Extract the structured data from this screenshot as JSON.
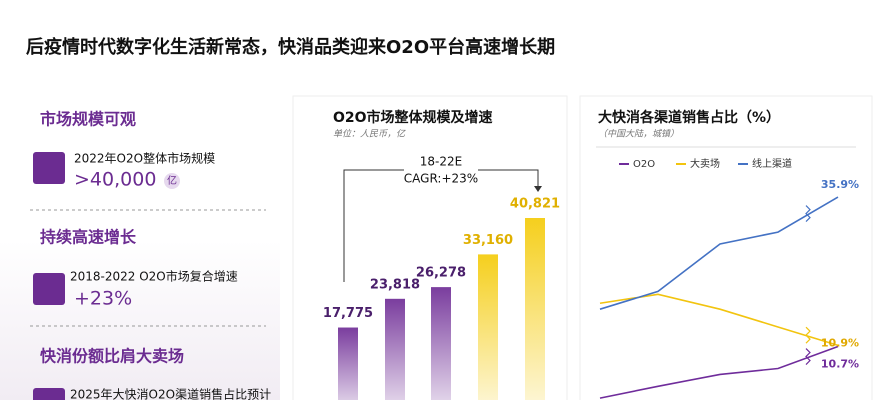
{
  "title": "后疫情时代数字化生活新常态，快消品类迎来O2O平台高速增长期",
  "highlights": [
    {
      "heading": "市场规模可观",
      "label": "2022年O2O整体市场规模",
      "value": ">40,000",
      "unit": "亿"
    },
    {
      "heading": "持续高速增长",
      "label": "2018-2022 O2O市场复合增速",
      "value": "+23%"
    },
    {
      "heading": "快消份额比肩大卖场",
      "label": "2025年大快消O2O渠道销售占比预计"
    }
  ],
  "chart_data": [
    {
      "type": "bar",
      "title": "O2O市场整体规模及增速",
      "subtitle": "单位：人民币，亿",
      "annotation": [
        "18-22E",
        "CAGR:+23%"
      ],
      "categories": [
        null,
        null,
        null,
        null,
        null
      ],
      "values": [
        17775,
        23818,
        26278,
        33160,
        40821
      ],
      "value_labels": [
        "17,775",
        "23,818",
        "26,278",
        "33,160",
        "40,821"
      ],
      "colors": [
        "#7a3d9e",
        "#7a3d9e",
        "#7a3d9e",
        "#f5cf1d",
        "#f5cf1d"
      ]
    },
    {
      "type": "line",
      "title": "大快消各渠道销售占比（%）",
      "subtitle": "（中国大陆，城镇）",
      "categories": [
        null,
        null,
        null,
        null,
        null
      ],
      "series": [
        {
          "name": "O2O",
          "color": "#6f2c9b",
          "values": [
            2,
            4,
            6,
            7,
            10.7
          ],
          "value_labels": [
            null,
            null,
            null,
            null,
            "10.7%"
          ]
        },
        {
          "name": "大卖场",
          "color": "#f2c40f",
          "values": [
            18,
            19.5,
            17,
            14,
            10.9
          ],
          "value_labels": [
            null,
            null,
            null,
            null,
            "10.9%"
          ]
        },
        {
          "name": "线上渠道",
          "color": "#4472c4",
          "values": [
            17,
            20,
            28,
            30,
            35.9
          ],
          "value_labels": [
            null,
            null,
            null,
            null,
            "35.9%"
          ]
        }
      ]
    }
  ]
}
